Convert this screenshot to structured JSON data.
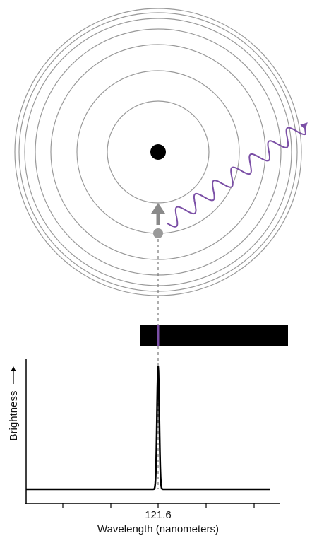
{
  "spectrum": {
    "y_label": "Brightness",
    "peak_label": "121.6",
    "x_label": "Wavelength (nanometers)"
  }
}
